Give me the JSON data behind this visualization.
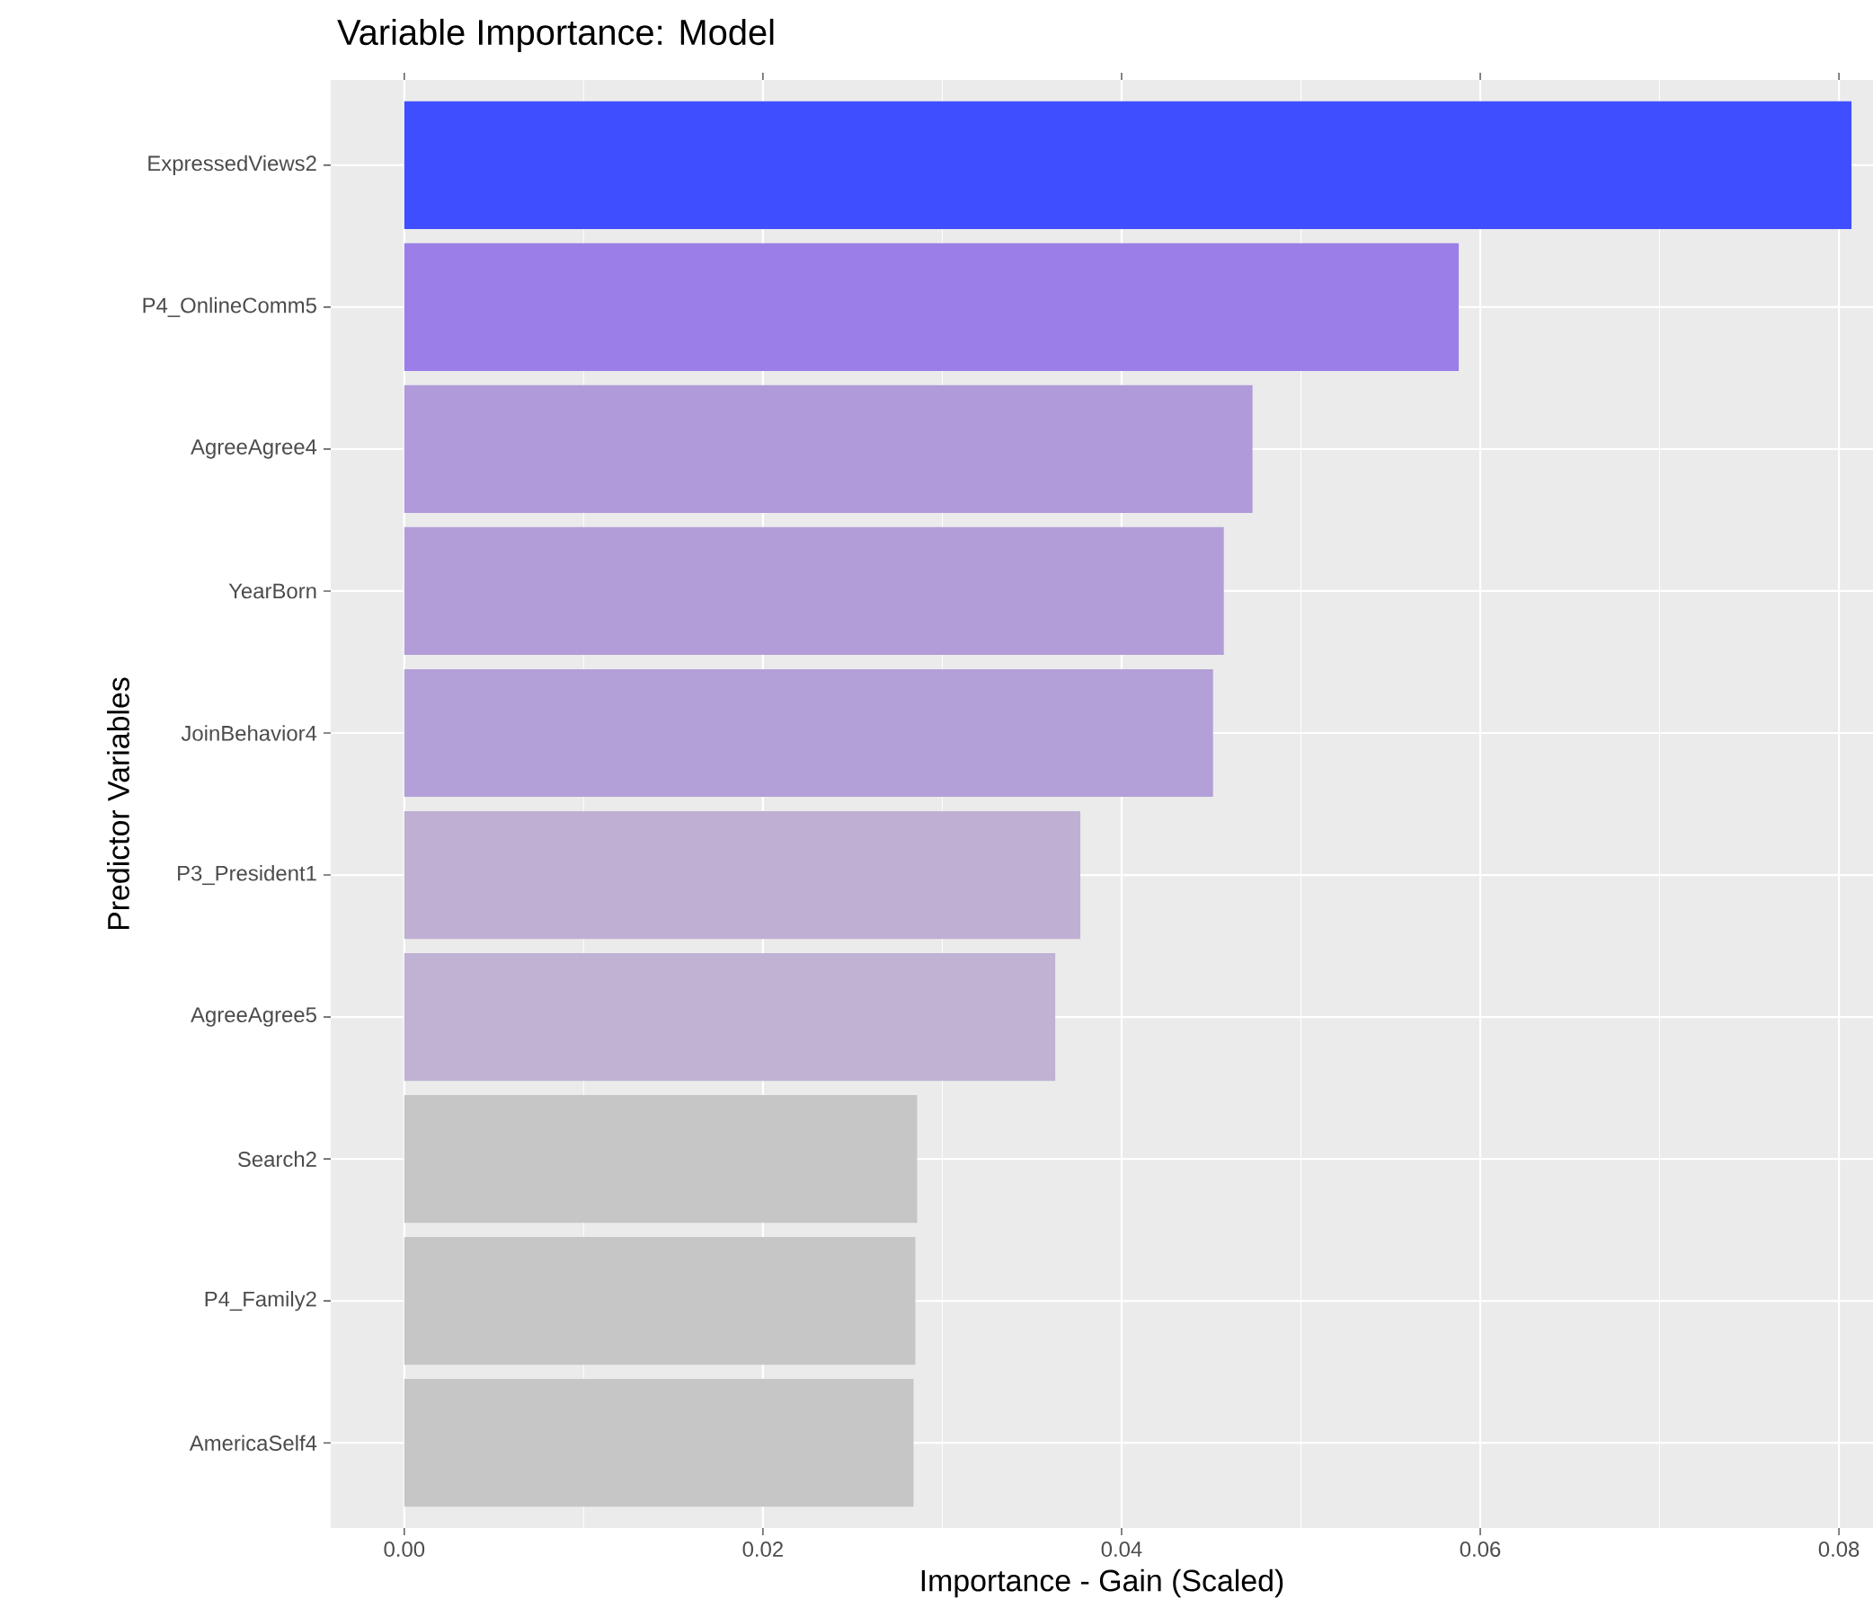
{
  "chart_data": {
    "type": "bar",
    "orientation": "horizontal",
    "title": "Variable Importance: Model",
    "xlabel": "Importance - Gain (Scaled)",
    "ylabel": "Predictor Variables",
    "categories": [
      "ExpressedViews2",
      "P4_OnlineComm5",
      "AgreeAgree4",
      "YearBorn",
      "JoinBehavior4",
      "P3_President1",
      "AgreeAgree5",
      "Search2",
      "P4_Family2",
      "AmericaSelf4"
    ],
    "values": [
      0.0807,
      0.0588,
      0.0473,
      0.0457,
      0.0451,
      0.0377,
      0.0363,
      0.0286,
      0.0285,
      0.0284
    ],
    "colors": [
      "#3f4fff",
      "#9b7ee8",
      "#b09ada",
      "#b29dd8",
      "#b3a0d8",
      "#bfafd3",
      "#c0b2d2",
      "#c6c6c6",
      "#c6c6c6",
      "#c6c6c6"
    ],
    "xlim": [
      -0.0041,
      0.0819
    ],
    "xticks": [
      {
        "value": 0,
        "label": "0.00"
      },
      {
        "value": 0.02,
        "label": "0.02"
      },
      {
        "value": 0.04,
        "label": "0.04"
      },
      {
        "value": 0.06,
        "label": "0.06"
      },
      {
        "value": 0.08,
        "label": "0.08"
      }
    ],
    "grid": true
  }
}
